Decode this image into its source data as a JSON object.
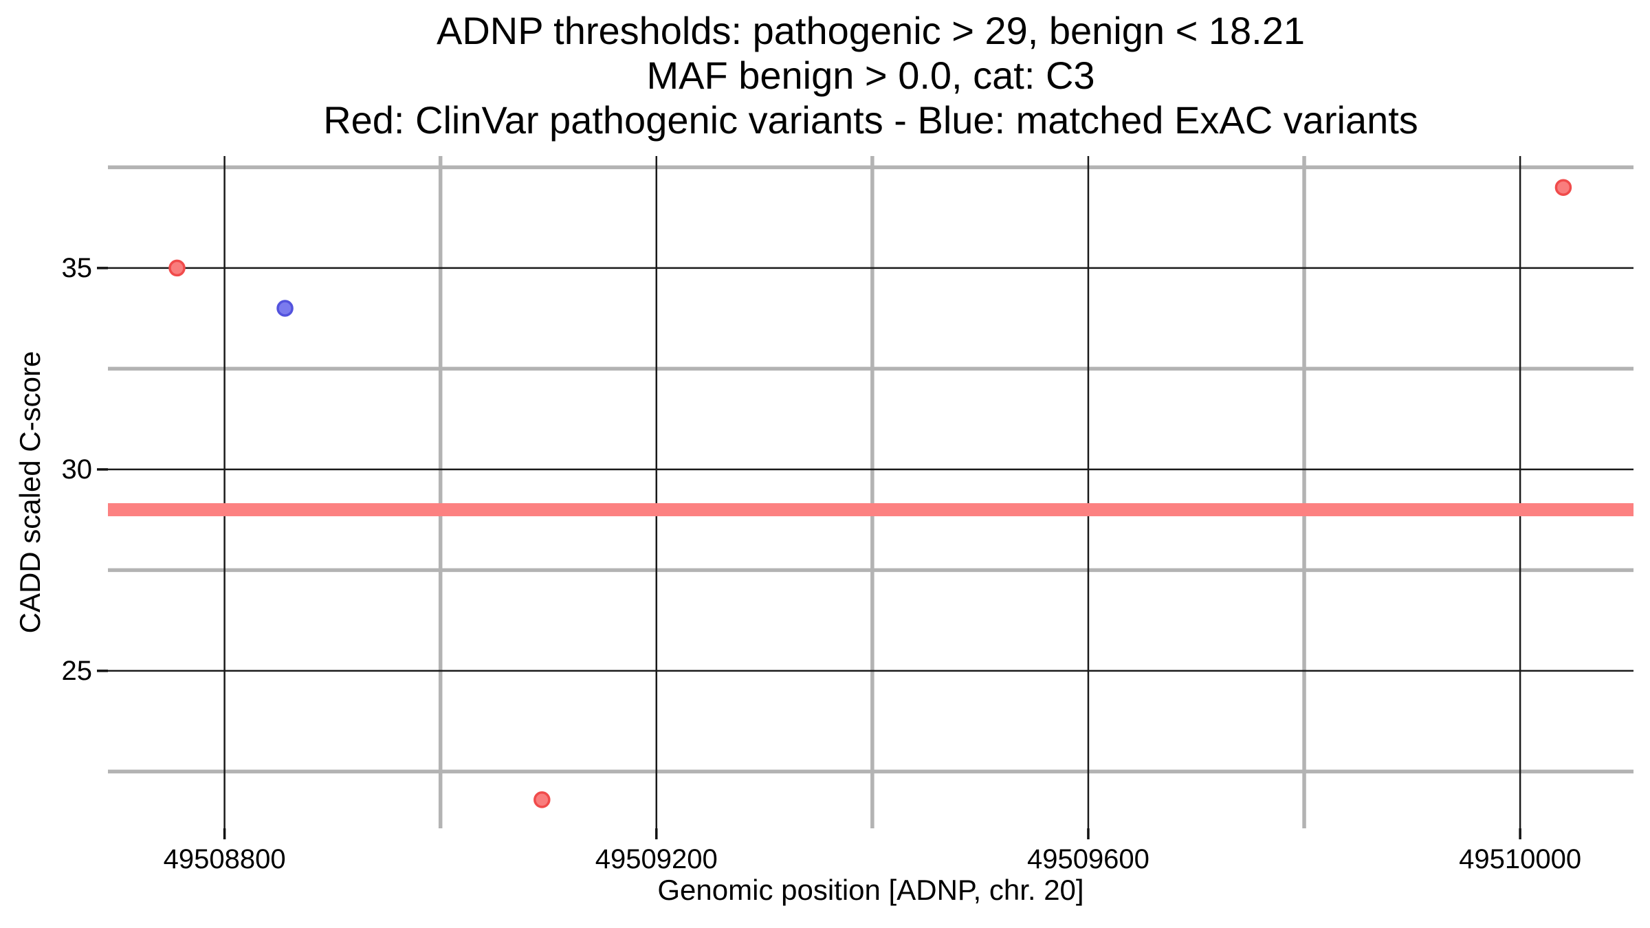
{
  "chart_data": {
    "type": "scatter",
    "title_lines": [
      "ADNP thresholds: pathogenic > 29, benign < 18.21",
      "MAF benign > 0.0, cat: C3",
      "Red: ClinVar pathogenic variants - Blue: matched ExAC variants"
    ],
    "xlabel": "Genomic position [ADNP, chr. 20]",
    "ylabel": "CADD scaled C-score",
    "xlim": [
      49508692,
      49510105
    ],
    "ylim": [
      21.09,
      37.78
    ],
    "x_ticks": [
      49508800,
      49509200,
      49509600,
      49510000
    ],
    "x_tick_labels": [
      "49508800",
      "49509200",
      "49509600",
      "49510000"
    ],
    "x_minor_ticks": [
      49509000,
      49509400,
      49509800
    ],
    "y_ticks": [
      25,
      30,
      35
    ],
    "y_tick_labels": [
      "25",
      "30",
      "35"
    ],
    "y_minor_ticks": [
      22.5,
      27.5,
      32.5,
      37.5
    ],
    "grid": {
      "on": true,
      "major_color": "#1a1a1a",
      "minor_color": "#b3b3b3",
      "major_width": 2.5,
      "minor_width": 5.5
    },
    "threshold_band": {
      "y": 29,
      "label": "pathogenic > 29",
      "color": "#fc8181",
      "thickness_px": 19
    },
    "thresholds": {
      "pathogenic_gt": 29,
      "benign_lt": 18.21,
      "maf_benign_gt": 0.0,
      "category": "C3"
    },
    "legend_position": "none",
    "series": [
      {
        "name": "ClinVar pathogenic variants",
        "color_name": "red",
        "fill": "#f97d7d",
        "stroke": "#f04b4b",
        "points": [
          [
            49508756,
            35.0
          ],
          [
            49509094,
            21.8
          ],
          [
            49510040,
            37.0
          ]
        ]
      },
      {
        "name": "matched ExAC variants",
        "color_name": "blue",
        "fill": "#7b7bee",
        "stroke": "#5353dd",
        "points": [
          [
            49508856,
            34.0
          ]
        ]
      }
    ]
  }
}
